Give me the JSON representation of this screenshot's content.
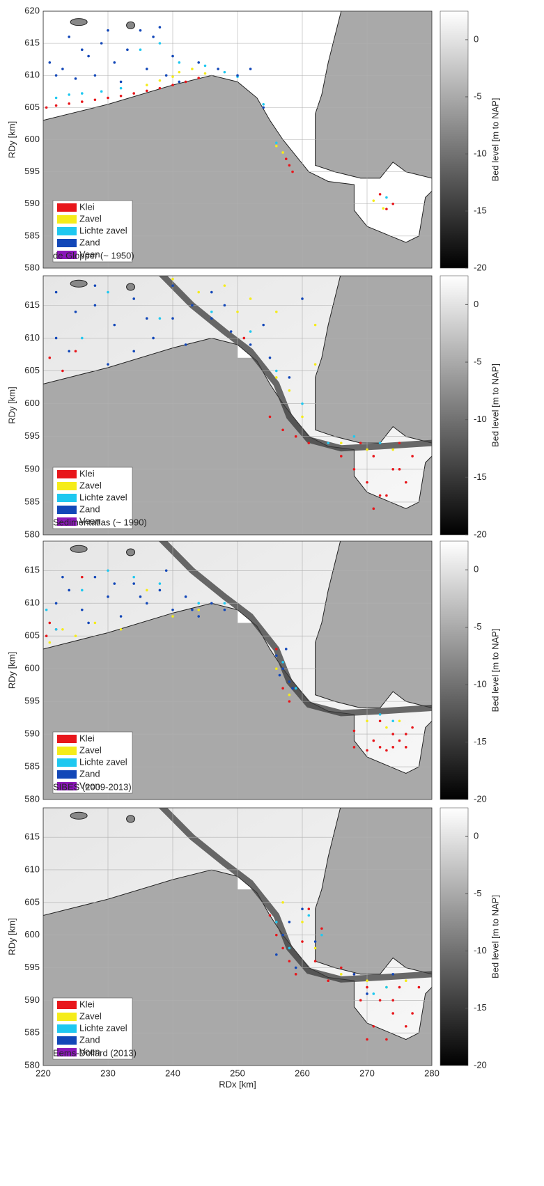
{
  "chart_data": [
    {
      "type": "scatter",
      "title": "de Glopper (~ 1950)",
      "ylabel": "RDy [km]",
      "xlim": [
        220,
        280
      ],
      "xticks": [
        220,
        230,
        240,
        250,
        260,
        270,
        280
      ],
      "ylim": [
        580,
        620
      ],
      "yticks": [
        580,
        585,
        590,
        595,
        600,
        605,
        610,
        615,
        620
      ],
      "grid": true,
      "colorbar": {
        "label": "Bed level [m to NAP]",
        "lim": [
          -20,
          2.5
        ],
        "ticks": [
          0,
          -5,
          -10,
          -15,
          -20
        ]
      },
      "series": [
        {
          "name": "Klei",
          "color": "#e8161b",
          "x": [
            220.5,
            222,
            224,
            226,
            228,
            230,
            232,
            234,
            236,
            238,
            240,
            242,
            244,
            257.5,
            258,
            258.5,
            272,
            273,
            274
          ],
          "y": [
            605,
            605.3,
            605.6,
            605.9,
            606.2,
            606.5,
            606.8,
            607.2,
            607.6,
            608,
            608.5,
            609,
            609.6,
            597,
            596,
            595,
            591.5,
            589.2,
            590
          ]
        },
        {
          "name": "Zavel",
          "color": "#f5ec1a",
          "x": [
            236,
            238,
            240,
            241,
            243,
            245,
            256,
            257,
            271,
            272.5
          ],
          "y": [
            608.5,
            609.2,
            609.8,
            610.5,
            611,
            610.3,
            599,
            598,
            590.5,
            589.3
          ]
        },
        {
          "name": "Lichte zavel",
          "color": "#1fc8f0",
          "x": [
            222,
            224,
            226,
            229,
            232,
            235,
            238,
            241,
            245,
            248,
            250,
            254,
            256,
            273
          ],
          "y": [
            606.5,
            607,
            607.2,
            607.5,
            608,
            614,
            615,
            612,
            611.5,
            610.5,
            609.8,
            605.5,
            599.5,
            591
          ]
        },
        {
          "name": "Zand",
          "color": "#1247b8",
          "x": [
            221,
            223,
            225,
            227,
            229,
            231,
            233,
            235,
            237,
            239,
            241,
            224,
            228,
            232,
            236,
            240,
            238,
            230,
            226,
            222,
            244,
            247,
            250,
            252,
            254
          ],
          "y": [
            612,
            611,
            609.5,
            613,
            615,
            612,
            614,
            617,
            616,
            610,
            609,
            616,
            610,
            609,
            611,
            613,
            617.5,
            617,
            614,
            610,
            612,
            611,
            610,
            611,
            605
          ]
        },
        {
          "name": "Veen",
          "color": "#8a16b8",
          "x": [],
          "y": []
        }
      ]
    },
    {
      "type": "scatter",
      "title": "Sedimentatlas (~ 1990)",
      "ylabel": "RDy [km]",
      "xlim": [
        220,
        280
      ],
      "xticks": [
        220,
        230,
        240,
        250,
        260,
        270,
        280
      ],
      "ylim": [
        580,
        619.5
      ],
      "yticks": [
        580,
        585,
        590,
        595,
        600,
        605,
        610,
        615
      ],
      "grid": true,
      "colorbar": {
        "label": "Bed level [m to NAP]",
        "lim": [
          -20,
          2.5
        ],
        "ticks": [
          0,
          -5,
          -10,
          -15,
          -20
        ]
      },
      "series": [
        {
          "name": "Klei",
          "color": "#e8161b",
          "x": [
            221,
            223,
            225,
            251,
            255,
            257,
            259,
            261,
            264,
            266,
            268,
            270,
            272,
            274,
            276,
            269,
            271,
            273,
            275,
            277,
            271,
            275
          ],
          "y": [
            607,
            605,
            608,
            610,
            598,
            596,
            595,
            594,
            594,
            592,
            590,
            588,
            586,
            590,
            588,
            594,
            592,
            586,
            594,
            592,
            584,
            590
          ]
        },
        {
          "name": "Zavel",
          "color": "#f5ec1a",
          "x": [
            240,
            244,
            248,
            252,
            256,
            258,
            262,
            262,
            266,
            270,
            274,
            260,
            256,
            250
          ],
          "y": [
            619,
            617,
            618,
            616,
            614,
            602,
            606,
            612,
            594,
            593,
            593,
            598,
            604,
            614
          ]
        },
        {
          "name": "Lichte zavel",
          "color": "#1fc8f0",
          "x": [
            230,
            238,
            246,
            252,
            256,
            260,
            264,
            268,
            272,
            226
          ],
          "y": [
            617,
            613,
            614,
            611,
            605,
            600,
            594,
            595,
            594,
            610
          ]
        },
        {
          "name": "Zand",
          "color": "#1247b8",
          "x": [
            222,
            225,
            228,
            231,
            234,
            237,
            240,
            243,
            246,
            249,
            252,
            255,
            258,
            224,
            230,
            236,
            242,
            248,
            254,
            260,
            222,
            228,
            234,
            240,
            246
          ],
          "y": [
            617,
            614,
            618,
            612,
            616,
            610,
            618,
            615,
            613,
            611,
            609,
            607,
            604,
            608,
            606,
            613,
            609,
            615,
            612,
            616,
            610,
            615,
            608,
            613,
            617
          ]
        },
        {
          "name": "Veen",
          "color": "#8a16b8",
          "x": [],
          "y": []
        }
      ]
    },
    {
      "type": "scatter",
      "title": "SIBES (2009-2013)",
      "ylabel": "RDy [km]",
      "xlim": [
        220,
        280
      ],
      "xticks": [
        220,
        230,
        240,
        250,
        260,
        270,
        280
      ],
      "ylim": [
        580,
        619.5
      ],
      "yticks": [
        580,
        585,
        590,
        595,
        600,
        605,
        610,
        615
      ],
      "grid": true,
      "colorbar": {
        "label": "Bed level [m to NAP]",
        "lim": [
          -20,
          2.5
        ],
        "ticks": [
          0,
          -5,
          -10,
          -15,
          -20
        ]
      },
      "series": [
        {
          "name": "Klei",
          "color": "#e8161b",
          "x": [
            220.5,
            221,
            222,
            226,
            256,
            257,
            258,
            271,
            272,
            273,
            274,
            275,
            276,
            277,
            268,
            270,
            272,
            274,
            276,
            268
          ],
          "y": [
            605,
            607,
            606,
            614,
            603,
            597,
            595,
            589,
            588,
            587.5,
            588,
            589,
            590,
            591,
            588,
            587.5,
            592,
            590,
            588,
            590.5
          ]
        },
        {
          "name": "Zavel",
          "color": "#f5ec1a",
          "x": [
            221,
            223,
            225,
            228,
            232,
            236,
            240,
            244,
            256,
            258,
            270,
            273,
            275
          ],
          "y": [
            604,
            606,
            605,
            607,
            606,
            612,
            608,
            609,
            600,
            596,
            592,
            591,
            592
          ]
        },
        {
          "name": "Lichte zavel",
          "color": "#1fc8f0",
          "x": [
            220.5,
            222,
            226,
            230,
            234,
            238,
            244,
            248,
            257,
            259,
            272,
            274
          ],
          "y": [
            609,
            606,
            612,
            615,
            614,
            613,
            610,
            610,
            601,
            597,
            593,
            592
          ]
        },
        {
          "name": "Zand",
          "color": "#1247b8",
          "x": [
            222,
            224,
            226,
            228,
            230,
            232,
            234,
            236,
            238,
            240,
            242,
            244,
            246,
            248,
            223,
            227,
            231,
            235,
            239,
            243,
            256,
            257,
            258,
            256.5,
            257.5,
            258.5
          ],
          "y": [
            610,
            612,
            609,
            614,
            611,
            608,
            613,
            610,
            612,
            609,
            611,
            608,
            610,
            609,
            614,
            607,
            613,
            611,
            615,
            609,
            602,
            600,
            598,
            599,
            603,
            597
          ]
        },
        {
          "name": "Veen",
          "color": "#8a16b8",
          "x": [],
          "y": []
        }
      ]
    },
    {
      "type": "scatter",
      "title": "Eems-Dollard (2013)",
      "ylabel": "RDy [km]",
      "xlabel": "RDx [km]",
      "xlim": [
        220,
        280
      ],
      "xticks": [
        220,
        230,
        240,
        250,
        260,
        270,
        280
      ],
      "ylim": [
        580,
        619.5
      ],
      "yticks": [
        580,
        585,
        590,
        595,
        600,
        605,
        610,
        615
      ],
      "grid": true,
      "colorbar": {
        "label": "Bed level [m to NAP]",
        "lim": [
          -20,
          2.5
        ],
        "ticks": [
          0,
          -5,
          -10,
          -15,
          -20
        ]
      },
      "series": [
        {
          "name": "Klei",
          "color": "#e8161b",
          "x": [
            255,
            256,
            257,
            258,
            259,
            260,
            262,
            264,
            266,
            268,
            270,
            272,
            274,
            276,
            269,
            271,
            273,
            275,
            277,
            270,
            274,
            278,
            261,
            263
          ],
          "y": [
            603,
            600,
            598,
            596,
            594,
            599,
            596,
            593,
            595,
            594,
            592,
            590,
            588,
            586,
            590,
            586,
            584,
            592,
            588,
            584,
            590,
            592,
            604,
            601
          ]
        },
        {
          "name": "Zavel",
          "color": "#f5ec1a",
          "x": [
            257,
            260,
            262,
            266,
            270,
            273,
            276
          ],
          "y": [
            605,
            602,
            598,
            594,
            593,
            592,
            593
          ]
        },
        {
          "name": "Lichte zavel",
          "color": "#1fc8f0",
          "x": [
            256,
            258,
            261,
            263,
            271,
            273
          ],
          "y": [
            602,
            598,
            603,
            600,
            591,
            592
          ]
        },
        {
          "name": "Zand",
          "color": "#1247b8",
          "x": [
            256,
            258,
            260,
            262,
            268,
            270,
            274,
            257,
            259
          ],
          "y": [
            597,
            602,
            604,
            599,
            594,
            591,
            594,
            600,
            595
          ]
        },
        {
          "name": "Veen",
          "color": "#8a16b8",
          "x": [],
          "y": []
        }
      ]
    }
  ]
}
